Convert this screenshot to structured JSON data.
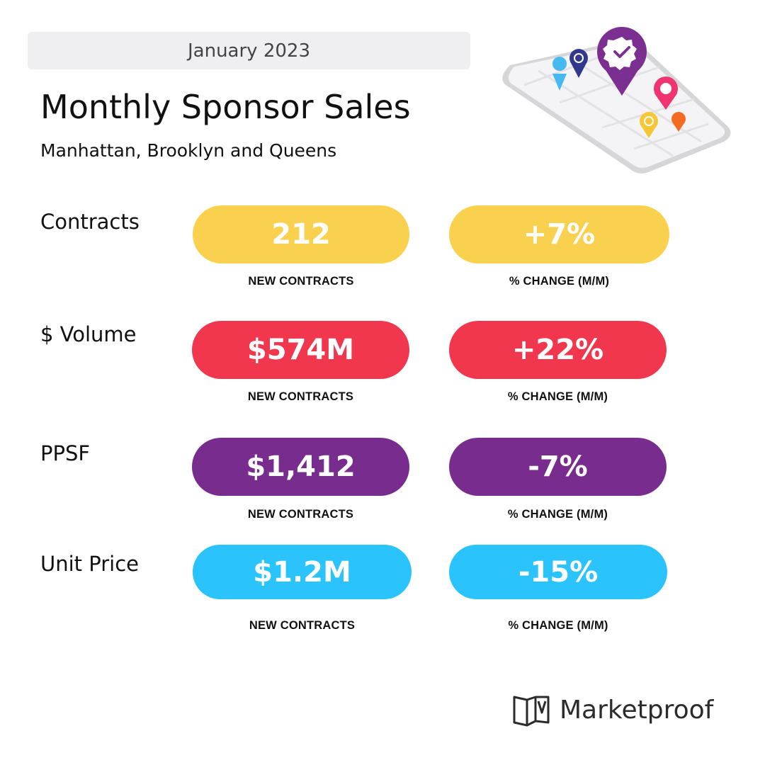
{
  "header": {
    "date": "January 2023",
    "title": "Monthly Sponsor Sales",
    "subtitle": "Manhattan, Brooklyn and Queens"
  },
  "metrics": [
    {
      "label": "Contracts",
      "value": "212",
      "value_caption": "NEW CONTRACTS",
      "change": "+7%",
      "change_caption": "% CHANGE (M/M)",
      "color": "#fad04f"
    },
    {
      "label": "$ Volume",
      "value": "$574M",
      "value_caption": "NEW CONTRACTS",
      "change": "+22%",
      "change_caption": "% CHANGE (M/M)",
      "color": "#f0374d"
    },
    {
      "label": "PPSF",
      "value": "$1,412",
      "value_caption": "NEW CONTRACTS",
      "change": "-7%",
      "change_caption": "% CHANGE (M/M)",
      "color": "#782d8e"
    },
    {
      "label": "Unit Price",
      "value": "$1.2M",
      "value_caption": "NEW CONTRACTS",
      "change": "-15%",
      "change_caption": "% CHANGE (M/M)",
      "color": "#2bc3fb"
    }
  ],
  "brand": {
    "name": "Marketproof"
  },
  "illustration": {
    "icon": "phone-map-pins-icon"
  }
}
